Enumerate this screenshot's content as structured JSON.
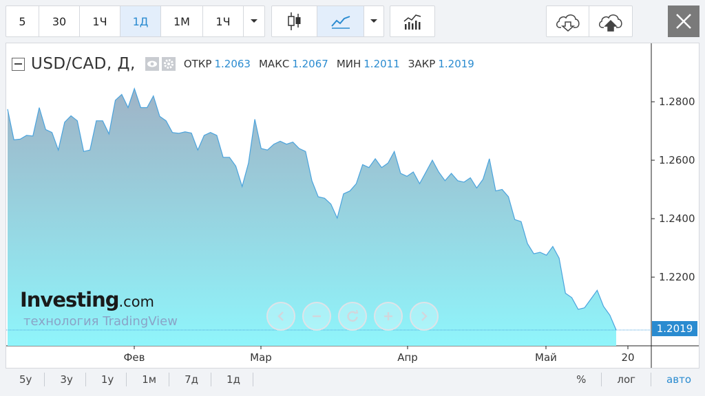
{
  "toolbar": {
    "intervals": [
      "5",
      "30",
      "1Ч",
      "1Д",
      "1М",
      "1Ч"
    ],
    "active_interval": 3,
    "icons": [
      "dropdown-icon",
      "candlestick-icon",
      "area-chart-icon",
      "dropdown-icon",
      "indicators-icon",
      "download-cloud-icon",
      "upload-cloud-icon",
      "close-icon"
    ]
  },
  "legend": {
    "symbol": "USD/CAD, Д,",
    "open_label": "ОТКР",
    "open": "1.2063",
    "high_label": "МАКС",
    "high": "1.2067",
    "low_label": "МИН",
    "low": "1.2011",
    "close_label": "ЗАКР",
    "close": "1.2019"
  },
  "watermark": {
    "brand": "Investing",
    "brand_suffix": ".com",
    "tech": "технология TradingView"
  },
  "price_tag": "1.2019",
  "bottom": {
    "ranges": [
      "5у",
      "3у",
      "1у",
      "1м",
      "7д",
      "1д"
    ],
    "options": [
      "%",
      "лог",
      "авто"
    ],
    "active_option": "авто"
  },
  "colors": {
    "accent": "#2a8bd0",
    "line": "#4aa3dd",
    "area_top": "#9fb3c6",
    "area_bottom": "#8ff5fb"
  },
  "chart_data": {
    "type": "area",
    "title": "",
    "xlabel": "",
    "ylabel": "",
    "x_tick_labels": [
      "Фев",
      "Мар",
      "Апр",
      "Май",
      "20"
    ],
    "y_tick_labels": [
      "1.2200",
      "1.2400",
      "1.2600",
      "1.2800"
    ],
    "y_ticks": [
      1.22,
      1.24,
      1.26,
      1.28
    ],
    "ylim": [
      1.1965,
      1.3
    ],
    "last_price": 1.2019,
    "series": [
      {
        "values": [
          1.2775,
          1.267,
          1.2672,
          1.2685,
          1.2683,
          1.278,
          1.2705,
          1.2695,
          1.2635,
          1.273,
          1.2752,
          1.2735,
          1.263,
          1.2635,
          1.2735,
          1.2735,
          1.269,
          1.2805,
          1.2825,
          1.278,
          1.2845,
          1.278,
          1.278,
          1.282,
          1.275,
          1.2735,
          1.2695,
          1.2692,
          1.2697,
          1.2693,
          1.2635,
          1.2685,
          1.2695,
          1.2685,
          1.261,
          1.261,
          1.258,
          1.251,
          1.259,
          1.274,
          1.264,
          1.2635,
          1.2655,
          1.2665,
          1.2655,
          1.2662,
          1.264,
          1.263,
          1.253,
          1.2475,
          1.247,
          1.245,
          1.2402,
          1.2485,
          1.2495,
          1.252,
          1.2585,
          1.2575,
          1.2605,
          1.2575,
          1.259,
          1.263,
          1.2555,
          1.2545,
          1.256,
          1.252,
          1.256,
          1.26,
          1.256,
          1.253,
          1.2555,
          1.253,
          1.2525,
          1.254,
          1.2505,
          1.2535,
          1.2605,
          1.2495,
          1.25,
          1.2475,
          1.2397,
          1.239,
          1.2315,
          1.228,
          1.2285,
          1.2275,
          1.2305,
          1.2265,
          1.2145,
          1.213,
          1.209,
          1.2095,
          1.2125,
          1.2155,
          1.21,
          1.207,
          1.2019
        ]
      }
    ]
  }
}
